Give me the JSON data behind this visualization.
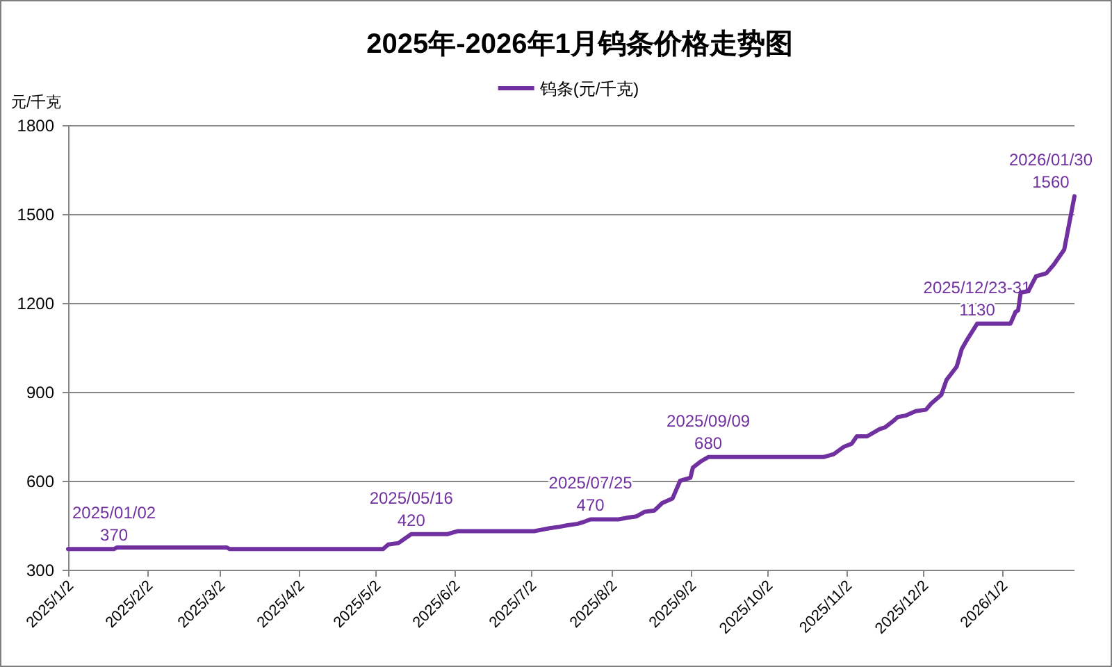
{
  "chart_data": {
    "type": "line",
    "title": "2025年-2026年1月钨条价格走势图",
    "ylabel": "元/千克",
    "legend": "top",
    "grid": "y",
    "xlim": [
      "2025-01-02",
      "2026-01-30"
    ],
    "xticks": [
      {
        "value": "2025-01-02",
        "label": "2025/1/2"
      },
      {
        "value": "2025-02-02",
        "label": "2025/2/2"
      },
      {
        "value": "2025-03-02",
        "label": "2025/3/2"
      },
      {
        "value": "2025-04-02",
        "label": "2025/4/2"
      },
      {
        "value": "2025-05-02",
        "label": "2025/5/2"
      },
      {
        "value": "2025-06-02",
        "label": "2025/6/2"
      },
      {
        "value": "2025-07-02",
        "label": "2025/7/2"
      },
      {
        "value": "2025-08-02",
        "label": "2025/8/2"
      },
      {
        "value": "2025-09-02",
        "label": "2025/9/2"
      },
      {
        "value": "2025-10-02",
        "label": "2025/10/2"
      },
      {
        "value": "2025-11-02",
        "label": "2025/11/2"
      },
      {
        "value": "2025-12-02",
        "label": "2025/12/2"
      },
      {
        "value": "2026-01-02",
        "label": "2026/1/2"
      }
    ],
    "ylim": [
      300,
      1800
    ],
    "yticks": [
      300,
      600,
      900,
      1200,
      1500,
      1800
    ],
    "x": [
      "2025-01-02",
      "2025-01-20",
      "2025-01-21",
      "2025-03-05",
      "2025-03-06",
      "2025-05-05",
      "2025-05-07",
      "2025-05-11",
      "2025-05-16",
      "2025-05-30",
      "2025-06-03",
      "2025-07-03",
      "2025-07-06",
      "2025-07-09",
      "2025-07-13",
      "2025-07-16",
      "2025-07-20",
      "2025-07-22",
      "2025-07-25",
      "2025-08-05",
      "2025-08-08",
      "2025-08-12",
      "2025-08-15",
      "2025-08-19",
      "2025-08-22",
      "2025-08-26",
      "2025-08-29",
      "2025-09-02",
      "2025-09-03",
      "2025-09-06",
      "2025-09-09",
      "2025-10-24",
      "2025-10-28",
      "2025-11-01",
      "2025-11-04",
      "2025-11-06",
      "2025-11-10",
      "2025-11-15",
      "2025-11-17",
      "2025-11-20",
      "2025-11-22",
      "2025-11-25",
      "2025-11-29",
      "2025-12-03",
      "2025-12-05",
      "2025-12-09",
      "2025-12-11",
      "2025-12-15",
      "2025-12-17",
      "2025-12-19",
      "2025-12-23",
      "2026-01-05",
      "2026-01-07",
      "2026-01-08",
      "2026-01-09",
      "2026-01-12",
      "2026-01-15",
      "2026-01-19",
      "2026-01-22",
      "2026-01-26",
      "2026-01-30"
    ],
    "series": [
      {
        "name": "钨条(元/千克)",
        "color": "#7030a0",
        "values": [
          370,
          370,
          375,
          375,
          370,
          370,
          385,
          390,
          420,
          420,
          430,
          430,
          435,
          440,
          445,
          450,
          455,
          460,
          470,
          470,
          475,
          480,
          495,
          500,
          525,
          540,
          600,
          610,
          645,
          665,
          680,
          680,
          690,
          715,
          725,
          750,
          750,
          775,
          780,
          800,
          815,
          820,
          835,
          840,
          860,
          890,
          940,
          985,
          1045,
          1075,
          1130,
          1130,
          1170,
          1175,
          1235,
          1240,
          1290,
          1300,
          1330,
          1380,
          1560
        ]
      }
    ],
    "annotations": [
      {
        "text": "2025/01/02\n370",
        "x": "2025-01-02",
        "y": 370
      },
      {
        "text": "2025/05/16\n420",
        "x": "2025-05-16",
        "y": 420
      },
      {
        "text": "2025/07/25\n470",
        "x": "2025-07-25",
        "y": 470
      },
      {
        "text": "2025/09/09\n680",
        "x": "2025-09-09",
        "y": 680
      },
      {
        "text": "2025/12/23-31\n1130",
        "x": "2025-12-23",
        "y": 1130
      },
      {
        "text": "2026/01/30\n1560",
        "x": "2026-01-30",
        "y": 1560
      }
    ]
  }
}
